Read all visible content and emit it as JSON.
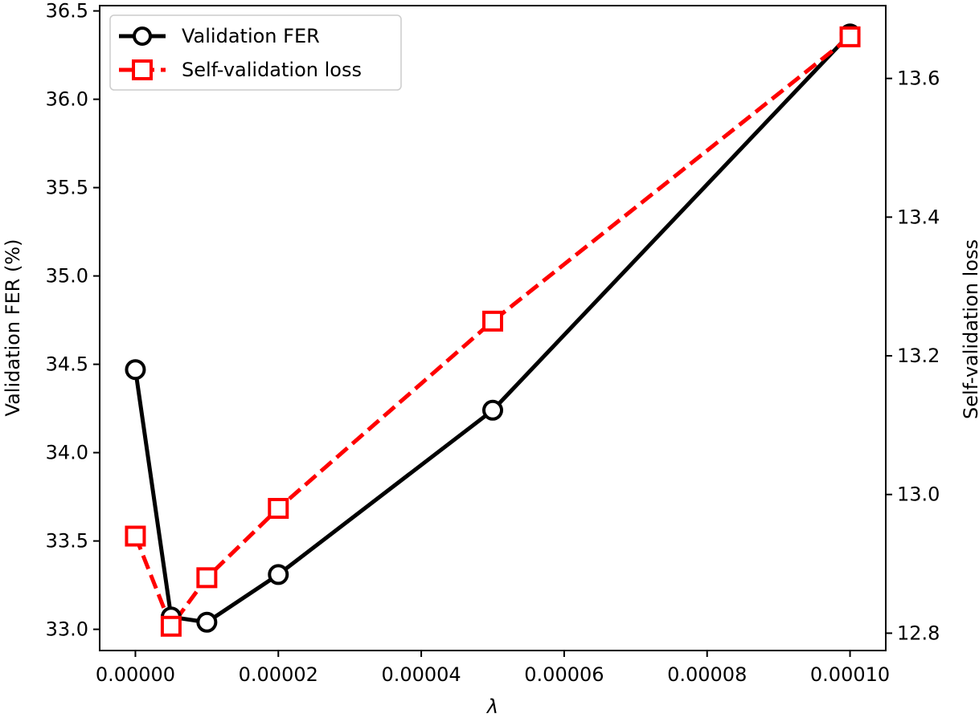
{
  "chart_data": {
    "type": "line",
    "title": "",
    "xlabel": "λ",
    "ylabel": "Validation FER (%)",
    "y2label": "Self-validation loss",
    "x": [
      0.0,
      5e-06,
      1e-05,
      2e-05,
      5e-05,
      0.0001
    ],
    "xlim": [
      -5e-06,
      0.000105
    ],
    "ylim": [
      32.88,
      36.53
    ],
    "y2lim": [
      12.775,
      13.705
    ],
    "xticks": [
      0.0,
      2e-05,
      4e-05,
      6e-05,
      8e-05,
      0.0001
    ],
    "xtick_labels": [
      "0.00000",
      "0.00002",
      "0.00004",
      "0.00006",
      "0.00008",
      "0.00010"
    ],
    "yticks": [
      33.0,
      33.5,
      34.0,
      34.5,
      35.0,
      35.5,
      36.0,
      36.5
    ],
    "ytick_labels": [
      "33.0",
      "33.5",
      "34.0",
      "34.5",
      "35.0",
      "35.5",
      "36.0",
      "36.5"
    ],
    "y2ticks": [
      12.8,
      13.0,
      13.2,
      13.4,
      13.6
    ],
    "y2tick_labels": [
      "12.8",
      "13.0",
      "13.2",
      "13.4",
      "13.6"
    ],
    "grid": false,
    "legend_position": "top-left",
    "series": [
      {
        "name": "Validation FER",
        "axis": "left",
        "color": "#000000",
        "line_style": "solid",
        "marker": "circle",
        "values": [
          34.47,
          33.07,
          33.04,
          33.31,
          34.24,
          36.37
        ]
      },
      {
        "name": "Self-validation loss",
        "axis": "right",
        "color": "#ff0000",
        "line_style": "dashed",
        "marker": "square",
        "values": [
          12.94,
          12.81,
          12.88,
          12.98,
          13.25,
          13.66
        ]
      }
    ]
  }
}
